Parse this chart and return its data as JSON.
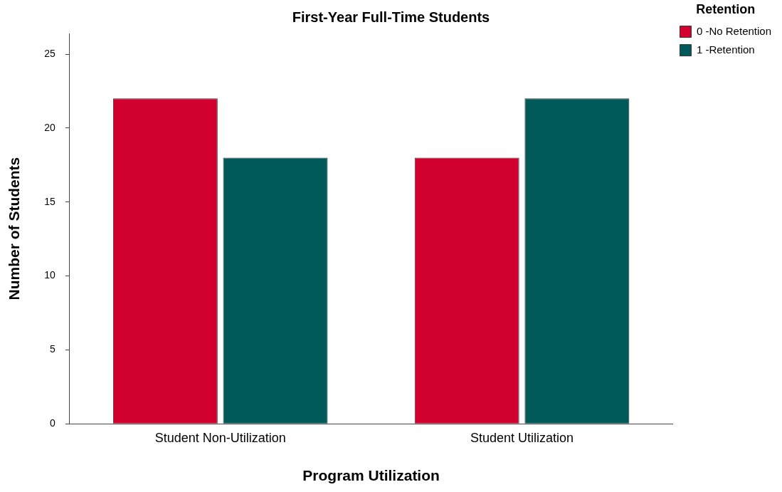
{
  "chart_data": {
    "type": "bar",
    "title": "First-Year Full-Time Students",
    "xlabel": "Program Utilization",
    "ylabel": "Number of Students",
    "legend_title": "Retention",
    "categories": [
      "Student Non-Utilization",
      "Student Utilization"
    ],
    "series": [
      {
        "name": "0 -No Retention",
        "color": "#d1002e",
        "values": [
          22,
          18
        ]
      },
      {
        "name": "1 -Retention",
        "color": "#005a5a",
        "values": [
          18,
          22
        ]
      }
    ],
    "ylim": [
      0,
      26.4
    ],
    "yticks": [
      0,
      5,
      10,
      15,
      20,
      25
    ],
    "grid": false,
    "legend": "top right"
  }
}
